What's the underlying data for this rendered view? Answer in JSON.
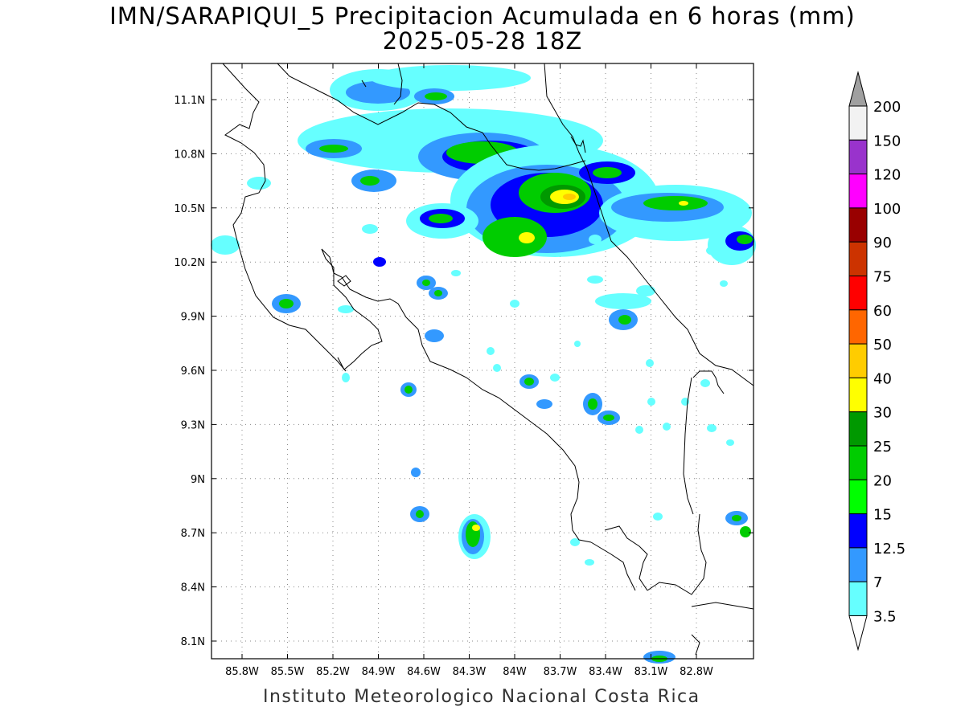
{
  "title_line1": "IMN/SARAPIQUI_5 Precipitacion Acumulada en 6 horas (mm)",
  "title_line2": "2025-05-28 18Z",
  "footer": "Instituto Meteorologico Nacional Costa Rica",
  "lon_labels": [
    "85.8W",
    "85.5W",
    "85.2W",
    "84.9W",
    "84.6W",
    "84.3W",
    "84W",
    "83.7W",
    "83.4W",
    "83.1W",
    "82.8W"
  ],
  "lat_labels": [
    "11.1N",
    "10.8N",
    "10.5N",
    "10.2N",
    "9.9N",
    "9.6N",
    "9.3N",
    "9N",
    "8.7N",
    "8.4N",
    "8.1N"
  ],
  "colorbar": {
    "labels": [
      "200",
      "150",
      "120",
      "100",
      "90",
      "75",
      "60",
      "50",
      "40",
      "30",
      "25",
      "20",
      "15",
      "12.5",
      "7",
      "3.5"
    ],
    "colors": [
      "#f2f2f2",
      "#9933cc",
      "#ff00ff",
      "#990000",
      "#cc3300",
      "#ff0000",
      "#ff6600",
      "#ffcc00",
      "#ffff00",
      "#009900",
      "#00cc00",
      "#00ff00",
      "#0000ff",
      "#3399ff",
      "#66ffff"
    ],
    "over_color": "#a0a0a0",
    "under_color": "#ffffff"
  }
}
